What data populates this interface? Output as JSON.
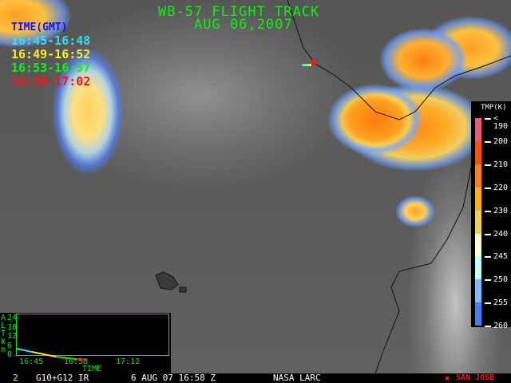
{
  "title": {
    "line1": "WB-57 FLIGHT TRACK",
    "line2": "AUG 06,2007"
  },
  "legend": {
    "heading": "TIME(GMT)",
    "heading_color": "#1010ff",
    "ranges": [
      {
        "label": "16:45-16:48",
        "color": "#30e0f0"
      },
      {
        "label": "16:49-16:52",
        "color": "#f0f020"
      },
      {
        "label": "16:53-16:57",
        "color": "#10f010"
      },
      {
        "label": "16:58-17:02",
        "color": "#ff1010"
      }
    ]
  },
  "colorbar": {
    "title": "TMP(K)",
    "labels": [
      "< 190",
      "200",
      "210",
      "220",
      "230",
      "240",
      "245",
      "250",
      "255",
      "260"
    ],
    "colors": [
      "#f05878",
      "#ff5000",
      "#ff8010",
      "#ffb010",
      "#f0d050",
      "#ffffc8",
      "#c0ffff",
      "#80b8ff",
      "#4080ff"
    ]
  },
  "altitude_plot": {
    "ylabel": [
      "A",
      "L",
      "T",
      "k",
      "m"
    ],
    "yticks": [
      "24",
      "18",
      "12",
      "6",
      "0"
    ],
    "xticks": [
      "16:45",
      "16:58",
      "17:12"
    ],
    "xlabel": "TIME"
  },
  "status": {
    "frame": "2",
    "product": "G10+G12 IR",
    "datetime": "6 AUG 07 16:58 Z",
    "source": "NASA LARC",
    "marker_label": "SAN JOSE",
    "marker_color": "#ff1010"
  }
}
